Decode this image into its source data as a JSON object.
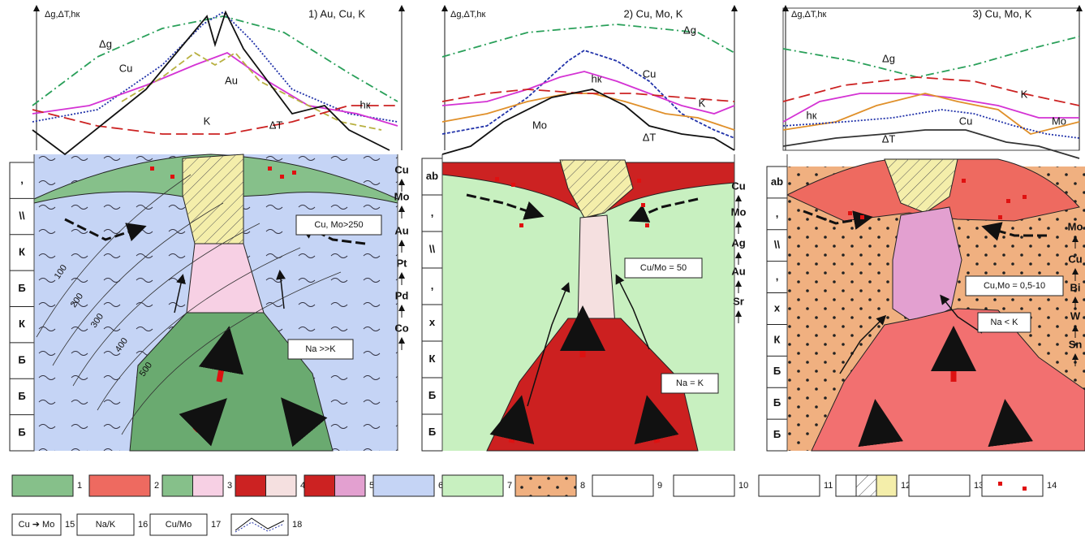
{
  "panels": [
    {
      "axis_label": "Δg,ΔT,hк",
      "title": "1) Au, Cu, K",
      "curve_labels": [
        "Δg",
        "Cu",
        "Au",
        "hк",
        "K",
        "ΔT"
      ],
      "column_labels": [
        ",",
        "\\\\",
        "К",
        "Б",
        "К",
        "Б",
        "Б",
        "Б"
      ],
      "elements": [
        "Cu",
        "Mo",
        "Au",
        "Pt",
        "Pd",
        "Co"
      ],
      "boxes": [
        "Cu, Mo>250",
        "Na >>K"
      ],
      "contours": [
        "100",
        "200",
        "300",
        "400",
        "500"
      ]
    },
    {
      "axis_label": "Δg,ΔT,hк",
      "title": "2) Cu, Mo, K",
      "curve_labels": [
        "Δg",
        "hк",
        "Cu",
        "K",
        "Mo",
        "ΔT"
      ],
      "column_labels": [
        "ab",
        ",",
        "\\\\",
        ",",
        "x",
        "К",
        "Б",
        "Б"
      ],
      "elements": [
        "Cu",
        "Mo",
        "Ag",
        "Au",
        "Sr"
      ],
      "boxes": [
        "Cu/Mo = 50",
        "Na = K"
      ]
    },
    {
      "axis_label": "Δg,ΔT,hк",
      "title": "3) Cu, Mo, K",
      "curve_labels": [
        "Δg",
        "K",
        "hк",
        "Cu",
        "Mo",
        "ΔT"
      ],
      "column_labels": [
        "ab",
        ",",
        "\\\\",
        ",",
        "x",
        "К",
        "Б",
        "Б",
        "Б"
      ],
      "elements": [
        "Mo",
        "Cu",
        "Bi",
        "W",
        "Sn"
      ],
      "boxes": [
        "Cu,Mo = 0,5-10",
        "Na < K"
      ]
    }
  ],
  "legend": [
    {
      "number": "1"
    },
    {
      "number": "2"
    },
    {
      "number": "3"
    },
    {
      "number": "4"
    },
    {
      "number": "5"
    },
    {
      "number": "6"
    },
    {
      "number": "7"
    },
    {
      "number": "8"
    },
    {
      "number": "9"
    },
    {
      "number": "10"
    },
    {
      "number": "11"
    },
    {
      "number": "12"
    },
    {
      "number": "13"
    },
    {
      "number": "14"
    },
    {
      "number": "15",
      "label": "Cu ➔ Mo"
    },
    {
      "number": "16",
      "label": "Na/K"
    },
    {
      "number": "17",
      "label": "Cu/Mo"
    },
    {
      "number": "18"
    }
  ]
}
